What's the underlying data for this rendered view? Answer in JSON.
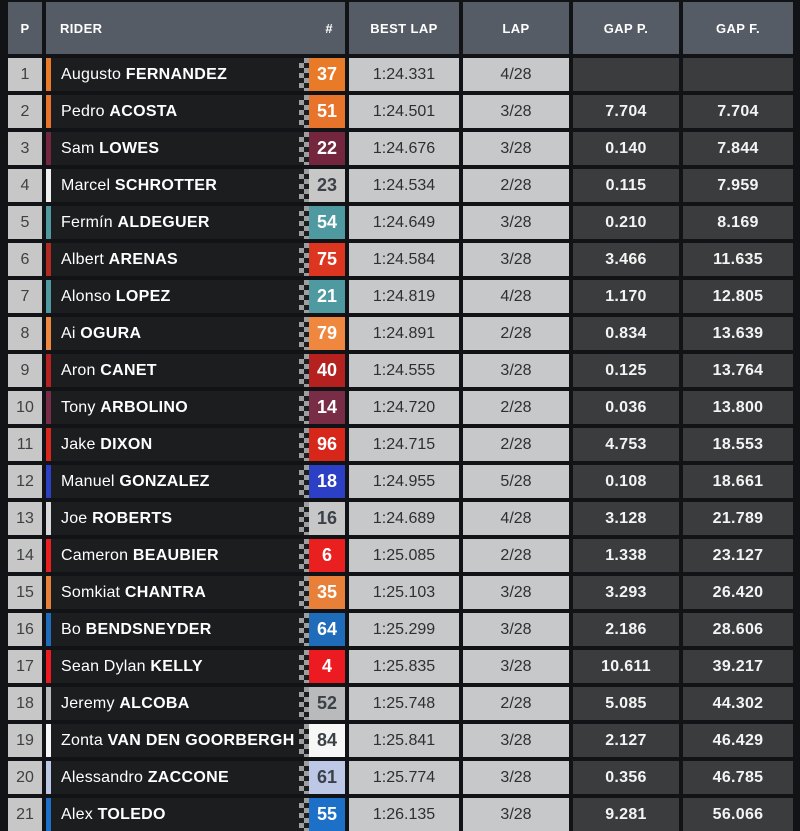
{
  "header": {
    "p": "P",
    "rider": "RIDER",
    "number": "#",
    "best_lap": "BEST LAP",
    "lap": "LAP",
    "gap_p": "GAP P.",
    "gap_f": "GAP F."
  },
  "colors": {
    "header_bg": "#565c65",
    "row_dark_bg": "#1b1d1f",
    "light_cell_bg": "#c7c8c9",
    "gap_cell_bg": "#3a3c3d",
    "page_bg": "#121316"
  },
  "rows": [
    {
      "pos": "1",
      "first": "Augusto",
      "last": "FERNANDEZ",
      "number": "37",
      "color": "#e87a28",
      "fg": "#ffffff",
      "stripe": "#e87a28",
      "best_lap": "1:24.331",
      "lap": "4/28",
      "gap_p": "",
      "gap_f": ""
    },
    {
      "pos": "2",
      "first": "Pedro",
      "last": "ACOSTA",
      "number": "51",
      "color": "#e8732a",
      "fg": "#ffffff",
      "stripe": "#e8732a",
      "best_lap": "1:24.501",
      "lap": "3/28",
      "gap_p": "7.704",
      "gap_f": "7.704"
    },
    {
      "pos": "3",
      "first": "Sam",
      "last": "LOWES",
      "number": "22",
      "color": "#74263f",
      "fg": "#ffffff",
      "stripe": "#74263f",
      "best_lap": "1:24.676",
      "lap": "3/28",
      "gap_p": "0.140",
      "gap_f": "7.844"
    },
    {
      "pos": "4",
      "first": "Marcel",
      "last": "SCHROTTER",
      "number": "23",
      "color": "#c7c7c7",
      "fg": "#3c4147",
      "stripe": "#f0f0f0",
      "best_lap": "1:24.534",
      "lap": "2/28",
      "gap_p": "0.115",
      "gap_f": "7.959"
    },
    {
      "pos": "5",
      "first": "Fermín",
      "last": "ALDEGUER",
      "number": "54",
      "color": "#4f99a1",
      "fg": "#ffffff",
      "stripe": "#4f99a1",
      "best_lap": "1:24.649",
      "lap": "3/28",
      "gap_p": "0.210",
      "gap_f": "8.169"
    },
    {
      "pos": "6",
      "first": "Albert",
      "last": "ARENAS",
      "number": "75",
      "color": "#dc3620",
      "fg": "#ffffff",
      "stripe": "#b02a22",
      "best_lap": "1:24.584",
      "lap": "3/28",
      "gap_p": "3.466",
      "gap_f": "11.635"
    },
    {
      "pos": "7",
      "first": "Alonso",
      "last": "LOPEZ",
      "number": "21",
      "color": "#4f99a1",
      "fg": "#ffffff",
      "stripe": "#4f99a1",
      "best_lap": "1:24.819",
      "lap": "4/28",
      "gap_p": "1.170",
      "gap_f": "12.805"
    },
    {
      "pos": "8",
      "first": "Ai",
      "last": "OGURA",
      "number": "79",
      "color": "#f0873e",
      "fg": "#ffffff",
      "stripe": "#f0873e",
      "best_lap": "1:24.891",
      "lap": "2/28",
      "gap_p": "0.834",
      "gap_f": "13.639"
    },
    {
      "pos": "9",
      "first": "Aron",
      "last": "CANET",
      "number": "40",
      "color": "#b5211f",
      "fg": "#ffffff",
      "stripe": "#b5211f",
      "best_lap": "1:24.555",
      "lap": "3/28",
      "gap_p": "0.125",
      "gap_f": "13.764"
    },
    {
      "pos": "10",
      "first": "Tony",
      "last": "ARBOLINO",
      "number": "14",
      "color": "#792c45",
      "fg": "#ffffff",
      "stripe": "#792c45",
      "best_lap": "1:24.720",
      "lap": "2/28",
      "gap_p": "0.036",
      "gap_f": "13.800"
    },
    {
      "pos": "11",
      "first": "Jake",
      "last": "DIXON",
      "number": "96",
      "color": "#d7271b",
      "fg": "#ffffff",
      "stripe": "#d7271b",
      "best_lap": "1:24.715",
      "lap": "2/28",
      "gap_p": "4.753",
      "gap_f": "18.553"
    },
    {
      "pos": "12",
      "first": "Manuel",
      "last": "GONZALEZ",
      "number": "18",
      "color": "#2b40c4",
      "fg": "#ffffff",
      "stripe": "#2b40c4",
      "best_lap": "1:24.955",
      "lap": "5/28",
      "gap_p": "0.108",
      "gap_f": "18.661"
    },
    {
      "pos": "13",
      "first": "Joe",
      "last": "ROBERTS",
      "number": "16",
      "color": "#c7c7c7",
      "fg": "#3c4147",
      "stripe": "#d9d9d9",
      "best_lap": "1:24.689",
      "lap": "4/28",
      "gap_p": "3.128",
      "gap_f": "21.789"
    },
    {
      "pos": "14",
      "first": "Cameron",
      "last": "BEAUBIER",
      "number": "6",
      "color": "#e9201f",
      "fg": "#ffffff",
      "stripe": "#e9201f",
      "best_lap": "1:25.085",
      "lap": "2/28",
      "gap_p": "1.338",
      "gap_f": "23.127"
    },
    {
      "pos": "15",
      "first": "Somkiat",
      "last": "CHANTRA",
      "number": "35",
      "color": "#e8803a",
      "fg": "#ffffff",
      "stripe": "#e8803a",
      "best_lap": "1:25.103",
      "lap": "3/28",
      "gap_p": "3.293",
      "gap_f": "26.420"
    },
    {
      "pos": "16",
      "first": "Bo",
      "last": "BENDSNEYDER",
      "number": "64",
      "color": "#1e6cba",
      "fg": "#ffffff",
      "stripe": "#1e6cba",
      "best_lap": "1:25.299",
      "lap": "3/28",
      "gap_p": "2.186",
      "gap_f": "28.606"
    },
    {
      "pos": "17",
      "first": "Sean Dylan",
      "last": "KELLY",
      "number": "4",
      "color": "#ec1b22",
      "fg": "#ffffff",
      "stripe": "#ec1b22",
      "best_lap": "1:25.835",
      "lap": "3/28",
      "gap_p": "10.611",
      "gap_f": "39.217"
    },
    {
      "pos": "18",
      "first": "Jeremy",
      "last": "ALCOBA",
      "number": "52",
      "color": "#b9babb",
      "fg": "#3c4147",
      "stripe": "#b9babb",
      "best_lap": "1:25.748",
      "lap": "2/28",
      "gap_p": "5.085",
      "gap_f": "44.302"
    },
    {
      "pos": "19",
      "first": "Zonta",
      "last": "VAN DEN GOORBERGH",
      "number": "84",
      "color": "#f7f7f7",
      "fg": "#3c4147",
      "stripe": "#f7f7f7",
      "best_lap": "1:25.841",
      "lap": "3/28",
      "gap_p": "2.127",
      "gap_f": "46.429"
    },
    {
      "pos": "20",
      "first": "Alessandro",
      "last": "ZACCONE",
      "number": "61",
      "color": "#bdc7e6",
      "fg": "#3c4147",
      "stripe": "#bdc7e6",
      "best_lap": "1:25.774",
      "lap": "3/28",
      "gap_p": "0.356",
      "gap_f": "46.785"
    },
    {
      "pos": "21",
      "first": "Alex",
      "last": "TOLEDO",
      "number": "55",
      "color": "#1c70c8",
      "fg": "#ffffff",
      "stripe": "#1c70c8",
      "best_lap": "1:26.135",
      "lap": "3/28",
      "gap_p": "9.281",
      "gap_f": "56.066"
    }
  ]
}
